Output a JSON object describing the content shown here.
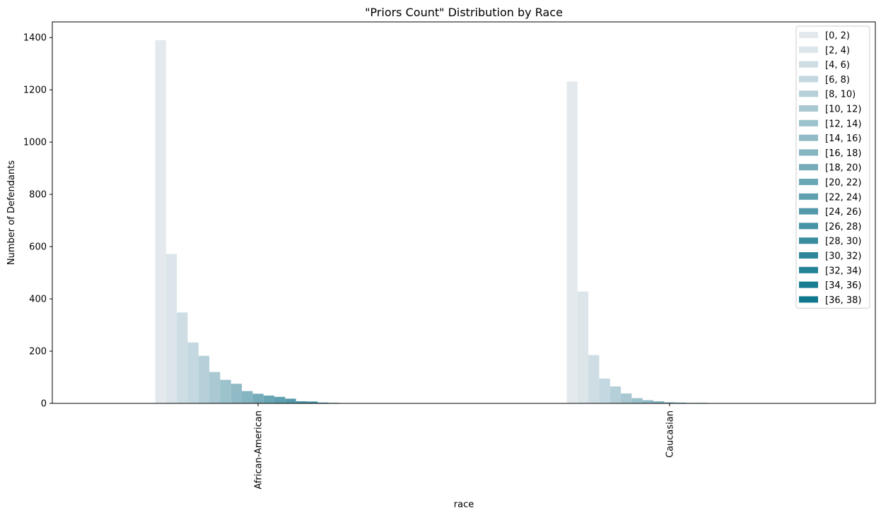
{
  "chart_data": {
    "type": "bar",
    "title": "\"Priors Count\" Distribution by Race",
    "xlabel": "race",
    "ylabel": "Number of Defendants",
    "categories": [
      "African-American",
      "Caucasian"
    ],
    "ylim": [
      0,
      1460
    ],
    "yticks": [
      0,
      200,
      400,
      600,
      800,
      1000,
      1200,
      1400
    ],
    "grid": false,
    "legend_position": "top-right",
    "series": [
      {
        "name": "[0, 2)",
        "color": "#e3e9ed",
        "values": [
          1390,
          1232
        ]
      },
      {
        "name": "[2, 4)",
        "color": "#dbe5ea",
        "values": [
          572,
          428
        ]
      },
      {
        "name": "[4, 6)",
        "color": "#cddde3",
        "values": [
          348,
          185
        ]
      },
      {
        "name": "[6, 8)",
        "color": "#c3d8e0",
        "values": [
          233,
          95
        ]
      },
      {
        "name": "[8, 10)",
        "color": "#b5d0d9",
        "values": [
          182,
          65
        ]
      },
      {
        "name": "[10, 12)",
        "color": "#a9c8d2",
        "values": [
          120,
          38
        ]
      },
      {
        "name": "[12, 14)",
        "color": "#9cc2cc",
        "values": [
          90,
          20
        ]
      },
      {
        "name": "[14, 16)",
        "color": "#8fbac6",
        "values": [
          75,
          12
        ]
      },
      {
        "name": "[16, 18)",
        "color": "#84b5c1",
        "values": [
          47,
          8
        ]
      },
      {
        "name": "[18, 20)",
        "color": "#76acba",
        "values": [
          37,
          4
        ]
      },
      {
        "name": "[20, 22)",
        "color": "#6aa7b5",
        "values": [
          30,
          3
        ]
      },
      {
        "name": "[22, 24)",
        "color": "#5ea0af",
        "values": [
          25,
          2
        ]
      },
      {
        "name": "[24, 26)",
        "color": "#5499a9",
        "values": [
          18,
          2
        ]
      },
      {
        "name": "[26, 28)",
        "color": "#4693a5",
        "values": [
          8,
          1
        ]
      },
      {
        "name": "[28, 30)",
        "color": "#3a8d9f",
        "values": [
          7,
          1
        ]
      },
      {
        "name": "[30, 32)",
        "color": "#2e879b",
        "values": [
          3,
          0
        ]
      },
      {
        "name": "[32, 34)",
        "color": "#238397",
        "values": [
          2,
          0
        ]
      },
      {
        "name": "[34, 36)",
        "color": "#187d92",
        "values": [
          1,
          0
        ]
      },
      {
        "name": "[36, 38)",
        "color": "#0f788e",
        "values": [
          1,
          0
        ]
      }
    ]
  }
}
